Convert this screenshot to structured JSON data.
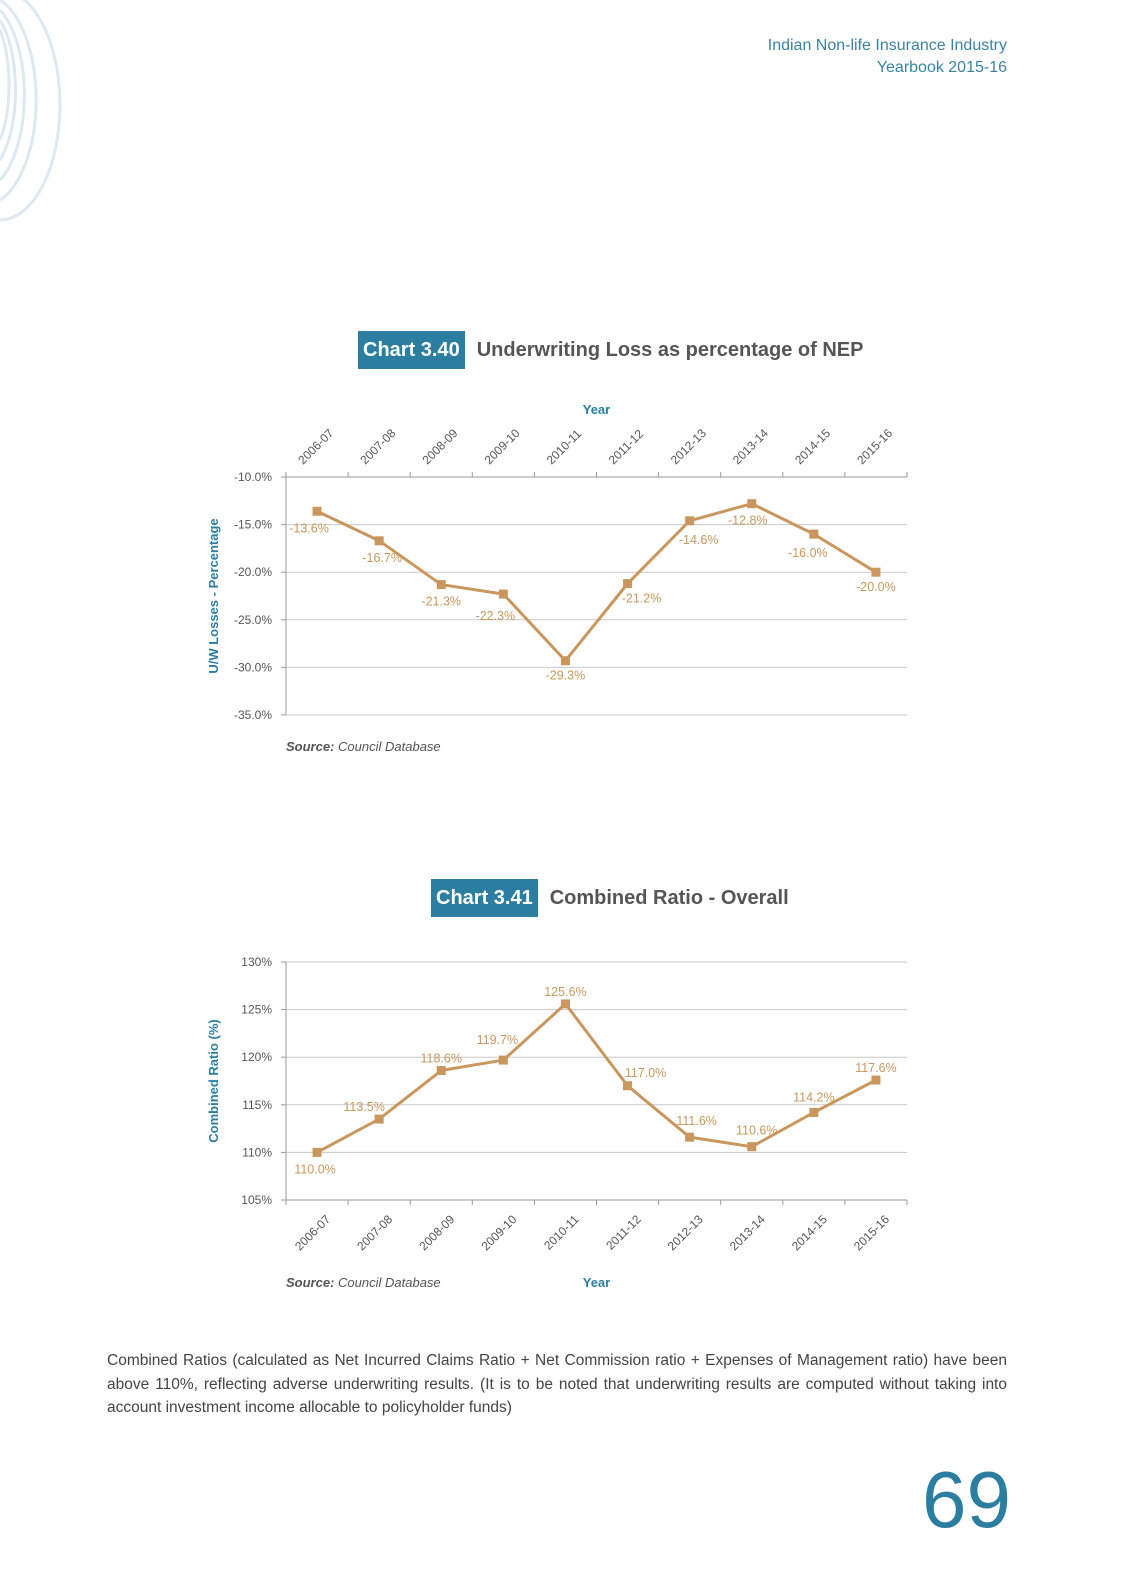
{
  "header": {
    "line1": "Indian Non-life Insurance Industry",
    "line2": "Yearbook 2015-16"
  },
  "charts": [
    {
      "number": "Chart 3.40",
      "title": "Underwriting Loss as percentage of NEP",
      "source_label": "Source:",
      "source_text": "Council Database"
    },
    {
      "number": "Chart 3.41",
      "title": "Combined Ratio - Overall",
      "source_label": "Source:",
      "source_text": "Council Database"
    }
  ],
  "chart_data": [
    {
      "type": "line",
      "title": "Underwriting Loss as percentage of NEP",
      "xlabel": "Year",
      "ylabel": "U/W Losses - Percentage",
      "x_axis_position": "top",
      "categories": [
        "2006-07",
        "2007-08",
        "2008-09",
        "2009-10",
        "2010-11",
        "2011-12",
        "2012-13",
        "2013-14",
        "2014-15",
        "2015-16"
      ],
      "values": [
        -13.6,
        -16.7,
        -21.3,
        -22.3,
        -29.3,
        -21.2,
        -14.6,
        -12.8,
        -16.0,
        -20.0
      ],
      "data_labels": [
        "-13.6%",
        "-16.7%",
        "-21.3%",
        "-22.3%",
        "-29.3%",
        "-21.2%",
        "-14.6%",
        "-12.8%",
        "-16.0%",
        "-20.0%"
      ],
      "yticks": [
        -10,
        -15,
        -20,
        -25,
        -30,
        -35
      ],
      "ytick_labels": [
        "-10.0%",
        "-15.0%",
        "-20.0%",
        "-25.0%",
        "-30.0%",
        "-35.0%"
      ],
      "ylim": [
        -35,
        -10
      ],
      "grid": true,
      "line_color": "#c9975e",
      "axis_title_color": "#2c7ea1"
    },
    {
      "type": "line",
      "title": "Combined Ratio - Overall",
      "xlabel": "Year",
      "ylabel": "Combined Ratio (%)",
      "x_axis_position": "bottom",
      "categories": [
        "2006-07",
        "2007-08",
        "2008-09",
        "2009-10",
        "2010-11",
        "2011-12",
        "2012-13",
        "2013-14",
        "2014-15",
        "2015-16"
      ],
      "values": [
        110.0,
        113.5,
        118.6,
        119.7,
        125.6,
        117.0,
        111.6,
        110.6,
        114.2,
        117.6
      ],
      "data_labels": [
        "110.0%",
        "113.5%",
        "118.6%",
        "119.7%",
        "125.6%",
        "117.0%",
        "111.6%",
        "110.6%",
        "114.2%",
        "117.6%"
      ],
      "yticks": [
        130,
        125,
        120,
        115,
        110,
        105
      ],
      "ytick_labels": [
        "130%",
        "125%",
        "120%",
        "115%",
        "110%",
        "105%"
      ],
      "ylim": [
        105,
        130
      ],
      "grid": true,
      "line_color": "#c9975e",
      "axis_title_color": "#2c7ea1"
    }
  ],
  "paragraph": "Combined Ratios (calculated as Net Incurred Claims Ratio + Net Commission ratio + Expenses of Management ratio) have been above 110%, reflecting adverse underwriting results. (It is to be noted that underwriting results are computed without taking into account investment income allocable to policyholder funds)",
  "page_number": "69"
}
